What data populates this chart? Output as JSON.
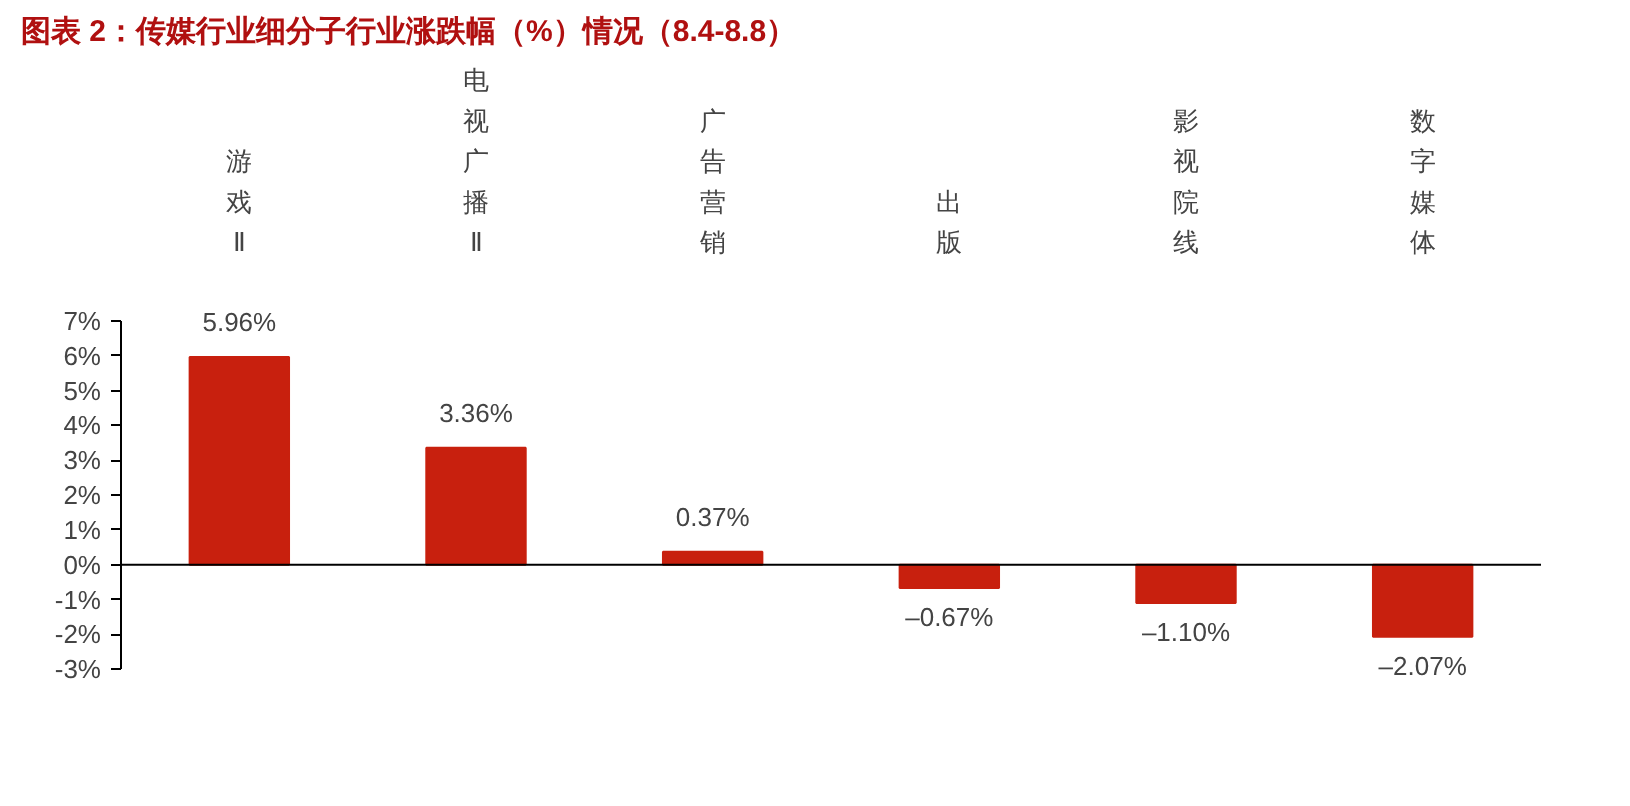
{
  "chart_data": {
    "type": "bar",
    "title": "图表 2：传媒行业细分子行业涨跌幅（%）情况（8.4-8.8）",
    "categories": [
      "游戏Ⅱ",
      "电视广播Ⅱ",
      "广告营销",
      "出版",
      "影视院线",
      "数字媒体"
    ],
    "values": [
      5.96,
      3.36,
      0.37,
      -0.67,
      -1.1,
      -2.07
    ],
    "value_labels": [
      "5.96%",
      "3.36%",
      "0.37%",
      "–0.67%",
      "–1.10%",
      "–2.07%"
    ],
    "color": "#c8200e",
    "yticks": [
      {
        "value": -3,
        "label": "-3%"
      },
      {
        "value": -2,
        "label": "-2%"
      },
      {
        "value": -1,
        "label": "-1%"
      },
      {
        "value": 0,
        "label": "0%"
      },
      {
        "value": 1,
        "label": "1%"
      },
      {
        "value": 2,
        "label": "2%"
      },
      {
        "value": 3,
        "label": "3%"
      },
      {
        "value": 4,
        "label": "4%"
      },
      {
        "value": 5,
        "label": "5%"
      },
      {
        "value": 6,
        "label": "6%"
      },
      {
        "value": 7,
        "label": "7%"
      }
    ],
    "ylim": [
      -3,
      7
    ]
  }
}
